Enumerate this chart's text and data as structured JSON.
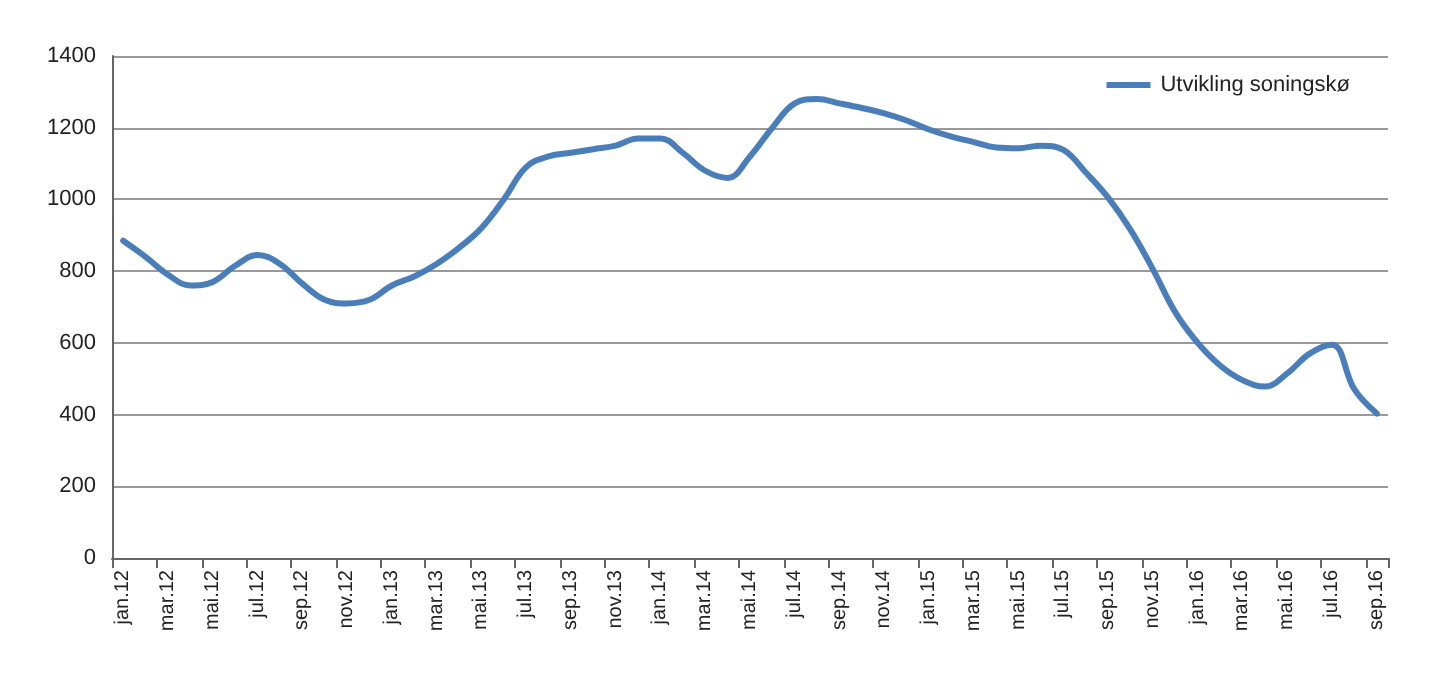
{
  "chart_data": {
    "type": "line",
    "categories": [
      "jan.12",
      null,
      "mar.12",
      null,
      "mai.12",
      null,
      "jul.12",
      null,
      "sep.12",
      null,
      "nov.12",
      null,
      "jan.13",
      null,
      "mar.13",
      null,
      "mai.13",
      null,
      "jul.13",
      null,
      "sep.13",
      null,
      "nov.13",
      null,
      "jan.14",
      null,
      "mar.14",
      null,
      "mai.14",
      null,
      "jul.14",
      null,
      "sep.14",
      null,
      "nov.14",
      null,
      "jan.15",
      null,
      "mar.15",
      null,
      "mai.15",
      null,
      "jul.15",
      null,
      "sep.15",
      null,
      "nov.15",
      null,
      "jan.16",
      null,
      "mar.16",
      null,
      "mai.16",
      null,
      "jul.16",
      null,
      "sep.16"
    ],
    "series": [
      {
        "name": "Utvikling soningskø",
        "color": "#4a7ebb",
        "values": [
          885,
          840,
          790,
          760,
          770,
          815,
          845,
          820,
          765,
          720,
          710,
          720,
          760,
          785,
          820,
          865,
          920,
          1000,
          1090,
          1120,
          1130,
          1140,
          1150,
          1170,
          1170,
          1130,
          1080,
          1060,
          1120,
          1200,
          1268,
          1280,
          1268,
          1255,
          1240,
          1220,
          1195,
          1175,
          1160,
          1145,
          1143,
          1150,
          1138,
          1075,
          1005,
          915,
          805,
          685,
          600,
          537,
          496,
          478,
          515,
          570,
          595,
          470,
          403
        ]
      }
    ],
    "ylim": [
      0,
      1400
    ],
    "yticks": [
      0,
      200,
      400,
      600,
      800,
      1000,
      1200,
      1400
    ],
    "grid": "y",
    "legend": "top right",
    "marker": "none",
    "line_style": "solid"
  }
}
